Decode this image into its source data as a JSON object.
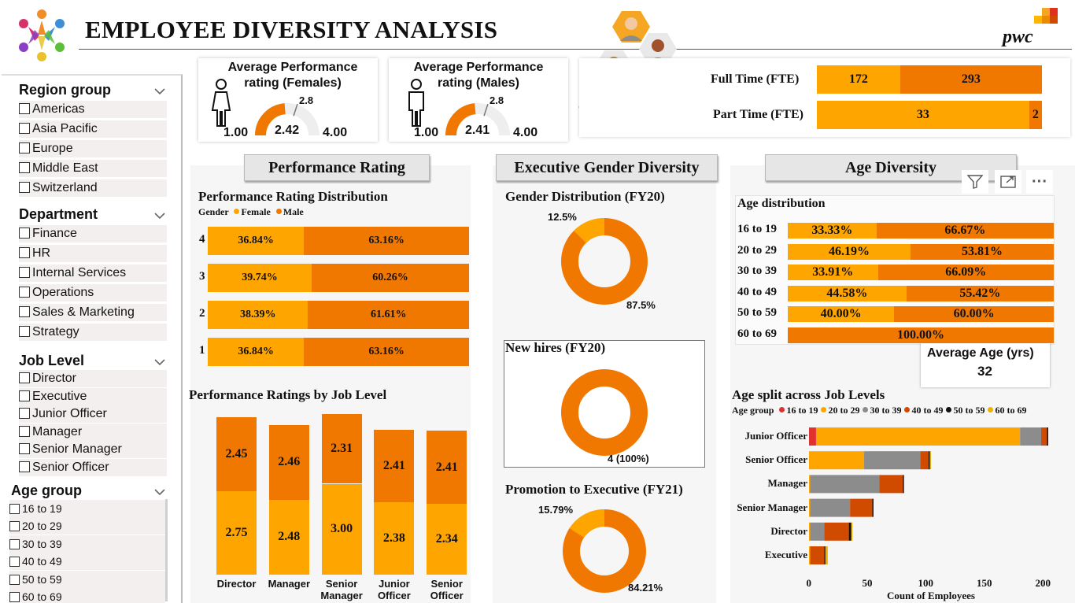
{
  "header": {
    "title": "EMPLOYEE DIVERSITY ANALYSIS",
    "brand": "pwc"
  },
  "colors": {
    "female": "#FFA500",
    "male": "#F07800",
    "gauge_track": "#eeeeee",
    "panel_bg": "#f6f6f6",
    "age_16_19": "#E03030",
    "age_20_29": "#FFA500",
    "age_30_39": "#8C8C8C",
    "age_40_49": "#D04A00",
    "age_50_59": "#111111",
    "age_60_69": "#F0B000"
  },
  "slicers": {
    "region": {
      "title": "Region group",
      "items": [
        "Americas",
        "Asia Pacific",
        "Europe",
        "Middle East",
        "Switzerland"
      ]
    },
    "department": {
      "title": "Department",
      "items": [
        "Finance",
        "HR",
        "Internal Services",
        "Operations",
        "Sales & Marketing",
        "Strategy"
      ]
    },
    "job_level": {
      "title": "Job Level",
      "items": [
        "Director",
        "Executive",
        "Junior Officer",
        "Manager",
        "Senior Manager",
        "Senior Officer"
      ]
    },
    "age_group": {
      "title": "Age group",
      "items": [
        "16 to 19",
        "20 to 29",
        "30 to 39",
        "40 to 49",
        "50 to 59",
        "60 to 69"
      ]
    }
  },
  "kpi_female": {
    "title": "Average Performance rating (Females)",
    "value": "2.42",
    "min": "1.00",
    "max": "4.00",
    "target": "2.8",
    "gauge": {
      "value": 2.42,
      "min": 1.0,
      "max": 4.0,
      "target": 2.8
    }
  },
  "kpi_male": {
    "title": "Average Performance rating (Males)",
    "value": "2.41",
    "min": "1.00",
    "max": "4.00",
    "target": "2.8",
    "gauge": {
      "value": 2.41,
      "min": 1.0,
      "max": 4.0,
      "target": 2.8
    }
  },
  "fte": {
    "rows": [
      {
        "label": "Full Time (FTE)",
        "female": 172,
        "male": 293
      },
      {
        "label": "Part Time (FTE)",
        "female": 33,
        "male": 2
      }
    ]
  },
  "sections": {
    "performance": "Performance Rating",
    "executive": "Executive Gender Diversity",
    "age": "Age Diversity"
  },
  "perf_dist": {
    "title": "Performance Rating Distribution",
    "legend_label": "Gender",
    "legend_items": [
      "Female",
      "Male"
    ],
    "rows": [
      {
        "rating": "4",
        "female": "36.84%",
        "male": "63.16%"
      },
      {
        "rating": "3",
        "female": "39.74%",
        "male": "60.26%"
      },
      {
        "rating": "2",
        "female": "38.39%",
        "male": "61.61%"
      },
      {
        "rating": "1",
        "female": "36.84%",
        "male": "63.16%"
      }
    ]
  },
  "perf_job": {
    "title": "Performance Ratings by Job Level",
    "bars": [
      {
        "label": "Director",
        "female": "2.75",
        "male": "2.45"
      },
      {
        "label": "Manager",
        "female": "2.48",
        "male": "2.46"
      },
      {
        "label": "Senior Manager",
        "female": "3.00",
        "male": "2.31"
      },
      {
        "label": "Junior Officer",
        "female": "2.38",
        "male": "2.41"
      },
      {
        "label": "Senior Officer",
        "female": "2.34",
        "male": "2.41"
      }
    ]
  },
  "gender_dist": {
    "title": "Gender Distribution (FY20)",
    "female": "12.5%",
    "male": "87.5%",
    "female_value": 12.5
  },
  "new_hires": {
    "title": "New hires (FY20)",
    "label": "4 (100%)",
    "female_value": 0
  },
  "promotion": {
    "title": "Promotion to Executive (FY21)",
    "female": "15.79%",
    "male": "84.21%",
    "female_value": 15.79
  },
  "age_dist": {
    "title": "Age distribution",
    "rows": [
      {
        "label": "16 to 19",
        "female": "33.33%",
        "male": "66.67%",
        "f": 33.33
      },
      {
        "label": "20 to 29",
        "female": "46.19%",
        "male": "53.81%",
        "f": 46.19
      },
      {
        "label": "30 to 39",
        "female": "33.91%",
        "male": "66.09%",
        "f": 33.91
      },
      {
        "label": "40 to 49",
        "female": "44.58%",
        "male": "55.42%",
        "f": 44.58
      },
      {
        "label": "50 to 59",
        "female": "40.00%",
        "male": "60.00%",
        "f": 40.0
      },
      {
        "label": "60 to 69",
        "female": "",
        "male": "100.00%",
        "f": 0
      }
    ]
  },
  "avg_age": {
    "title": "Average Age (yrs)",
    "value": "32"
  },
  "chart_data": {
    "type": "bar",
    "title": "Age split across Job Levels",
    "legend_label": "Age group",
    "xlabel": "Count of Employees",
    "xlim": [
      0,
      200
    ],
    "ticks": [
      "0",
      "50",
      "100",
      "150",
      "200"
    ],
    "categories": [
      "Junior Officer",
      "Senior Officer",
      "Manager",
      "Senior Manager",
      "Director",
      "Executive"
    ],
    "series": [
      {
        "name": "16 to 19",
        "values": [
          6,
          0,
          0,
          0,
          0,
          0
        ]
      },
      {
        "name": "20 to 29",
        "values": [
          174,
          47,
          1,
          1,
          1,
          1
        ]
      },
      {
        "name": "30 to 39",
        "values": [
          18,
          48,
          59,
          34,
          12,
          0
        ]
      },
      {
        "name": "40 to 49",
        "values": [
          5,
          7,
          20,
          19,
          21,
          12
        ]
      },
      {
        "name": "50 to 59",
        "values": [
          1,
          1,
          1,
          1,
          2,
          1
        ]
      },
      {
        "name": "60 to 69",
        "values": [
          0,
          1,
          0,
          0,
          1,
          2
        ]
      }
    ]
  },
  "toolbar": {
    "filter": "filter-icon",
    "focus": "focus-mode-icon",
    "more": "more-options-icon",
    "more_label": "···"
  }
}
